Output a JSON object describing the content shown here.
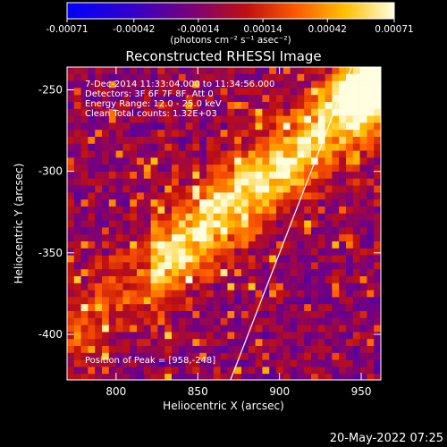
{
  "colorbar": {
    "ticks": [
      "-0.00071",
      "-0.00042",
      "-0.00014",
      "0.00014",
      "0.00042",
      "0.00071"
    ],
    "units": "(photons cm⁻² s⁻¹ asec⁻²)"
  },
  "annotations": {
    "time_range": "7-Dec-2014 11:33:04.000 to 11:34:56.000",
    "detectors": "Detectors: 3F 6F 7F 8F, Att 0",
    "energy": "Energy Range: 12.0 - 25.0 keV",
    "clean": "Clean     Total counts: 1.32E+03",
    "peak": "Position of Peak = [958,-248]"
  },
  "footer_date": "20-May-2022 07:25",
  "chart_data": {
    "type": "heatmap",
    "title": "Reconstructed RHESSI Image",
    "xlabel": "Heliocentric X (arcsec)",
    "ylabel": "Heliocentric Y (arcsec)",
    "xlim": [
      770,
      962
    ],
    "ylim": [
      -428,
      -236
    ],
    "xticks": [
      800,
      850,
      900,
      950
    ],
    "yticks": [
      -250,
      -300,
      -350,
      -400
    ],
    "value_range": [
      -0.00071,
      0.00071
    ],
    "peak": [
      958,
      -248
    ],
    "limb_line": [
      [
        870,
        -428
      ],
      [
        944,
        -236
      ]
    ],
    "colormap": [
      "#0000ff",
      "#4a00aa",
      "#7a007a",
      "#c01010",
      "#ff5a00",
      "#ffc000",
      "#ffffe0"
    ]
  }
}
